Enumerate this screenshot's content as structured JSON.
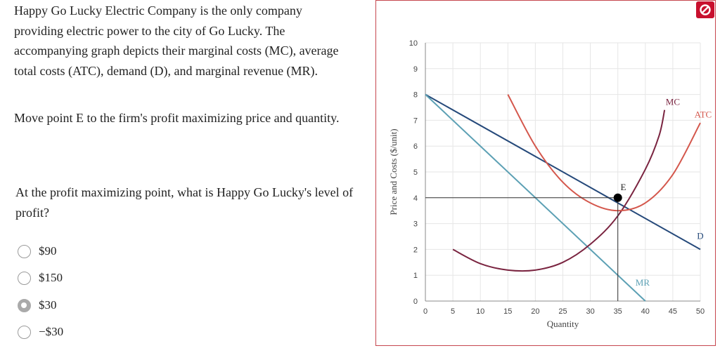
{
  "question": {
    "paragraph1": "Happy Go Lucky Electric Company is the only company providing electric power to the city of Go Lucky. The accompanying graph depicts their marginal costs (MC), average total costs (ATC), demand (D), and marginal revenue (MR).",
    "paragraph2": "Move point E to the firm's profit maximizing price and quantity.",
    "paragraph3": "At the profit maximizing point, what is Happy Go Lucky's level of profit?"
  },
  "options": [
    {
      "label": "$90",
      "selected": false
    },
    {
      "label": "$150",
      "selected": false
    },
    {
      "label": "$30",
      "selected": true
    },
    {
      "label": "−$30",
      "selected": false
    }
  ],
  "block_icon": "block-icon",
  "chart_data": {
    "type": "line",
    "xlabel": "Quantity",
    "ylabel": "Price and Costs ($/unit)",
    "xlim": [
      0,
      50
    ],
    "ylim": [
      0,
      10
    ],
    "x_ticks": [
      "0",
      "5",
      "10",
      "15",
      "20",
      "25",
      "30",
      "35",
      "40",
      "45",
      "50"
    ],
    "y_ticks": [
      "0",
      "1",
      "2",
      "3",
      "4",
      "5",
      "6",
      "7",
      "8",
      "9",
      "10"
    ],
    "grid": true,
    "series": [
      {
        "name": "D",
        "color": "#25497a",
        "points": [
          [
            0,
            8
          ],
          [
            50,
            2
          ]
        ]
      },
      {
        "name": "MR",
        "color": "#5ca0b4",
        "points": [
          [
            0,
            8
          ],
          [
            40,
            0
          ]
        ]
      },
      {
        "name": "MC",
        "color": "#7a2440",
        "points": [
          [
            5,
            2
          ],
          [
            10,
            1.45
          ],
          [
            15,
            1.2
          ],
          [
            20,
            1.2
          ],
          [
            25,
            1.5
          ],
          [
            30,
            2.2
          ],
          [
            35,
            3.3
          ],
          [
            40,
            5.1
          ],
          [
            42.5,
            6.4
          ],
          [
            43.5,
            7.4
          ]
        ]
      },
      {
        "name": "ATC",
        "color": "#d4574c",
        "points": [
          [
            15,
            8
          ],
          [
            20,
            6
          ],
          [
            25,
            4.6
          ],
          [
            30,
            3.8
          ],
          [
            35,
            3.5
          ],
          [
            40,
            3.8
          ],
          [
            45,
            4.9
          ],
          [
            50,
            6.9
          ]
        ]
      }
    ],
    "point_E": {
      "label": "E",
      "x": 35,
      "y": 4,
      "color": "#000000"
    },
    "guide_lines": {
      "color": "#333333"
    },
    "curve_labels": [
      {
        "text": "MC",
        "x": 45,
        "y": 7.6,
        "color": "#7a2440"
      },
      {
        "text": "ATC",
        "x": 50.5,
        "y": 7.1,
        "color": "#d4574c"
      },
      {
        "text": "D",
        "x": 50,
        "y": 2.4,
        "color": "#25497a"
      },
      {
        "text": "MR",
        "x": 39.5,
        "y": 0.6,
        "color": "#5ca0b4"
      },
      {
        "text": "E",
        "x": 36,
        "y": 4.3,
        "color": "#222222"
      }
    ]
  }
}
